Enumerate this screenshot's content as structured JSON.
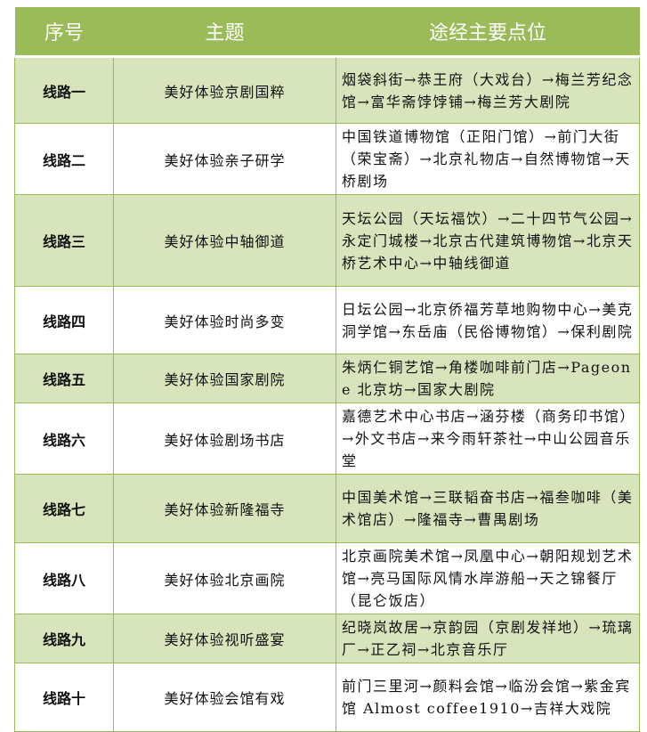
{
  "header": {
    "col1": "序号",
    "col2": "主题",
    "col3": "途经主要点位"
  },
  "colors": {
    "header_bg": "#9bbb59",
    "row_alt": "#d8e4bc",
    "border": "#9bbb59"
  },
  "rows": [
    {
      "id": "线路一",
      "theme": "美好体验京剧国粹",
      "route": "烟袋斜街→恭王府（大戏台）→梅兰芳纪念馆→富华斋饽饽铺→梅兰芳大剧院"
    },
    {
      "id": "线路二",
      "theme": "美好体验亲子研学",
      "route": "中国铁道博物馆（正阳门馆）→前门大街（荣宝斋）→北京礼物店→自然博物馆→天桥剧场"
    },
    {
      "id": "线路三",
      "theme": "美好体验中轴御道",
      "route": "天坛公园（天坛福饮）→二十四节气公园→永定门城楼→北京古代建筑博物馆→北京天桥艺术中心→中轴线御道"
    },
    {
      "id": "线路四",
      "theme": "美好体验时尚多变",
      "route": "日坛公园→北京侨福芳草地购物中心→美克洞学馆→东岳庙（民俗博物馆）→保利剧院"
    },
    {
      "id": "线路五",
      "theme": "美好体验国家剧院",
      "route": "朱炳仁铜艺馆→角楼咖啡前门店→Pageone 北京坊→国家大剧院"
    },
    {
      "id": "线路六",
      "theme": "美好体验剧场书店",
      "route": "嘉德艺术中心书店→涵芬楼（商务印书馆）→外文书店→来今雨轩茶社→中山公园音乐堂"
    },
    {
      "id": "线路七",
      "theme": "美好体验新隆福寺",
      "route": "中国美术馆→三联韬奋书店→福叁咖啡（美术馆店）→隆福寺→曹禺剧场"
    },
    {
      "id": "线路八",
      "theme": "美好体验北京画院",
      "route": "北京画院美术馆→凤凰中心→朝阳规划艺术馆→亮马国际风情水岸游船→天之锦餐厅（昆仑饭店）"
    },
    {
      "id": "线路九",
      "theme": "美好体验视听盛宴",
      "route": "纪晓岚故居→京韵园（京剧发祥地）→琉璃厂→正乙祠→北京音乐厅"
    },
    {
      "id": "线路十",
      "theme": "美好体验会馆有戏",
      "route": "前门三里河→颜料会馆→临汾会馆→紫金宾馆 Almost coffee1910→吉祥大戏院"
    }
  ]
}
